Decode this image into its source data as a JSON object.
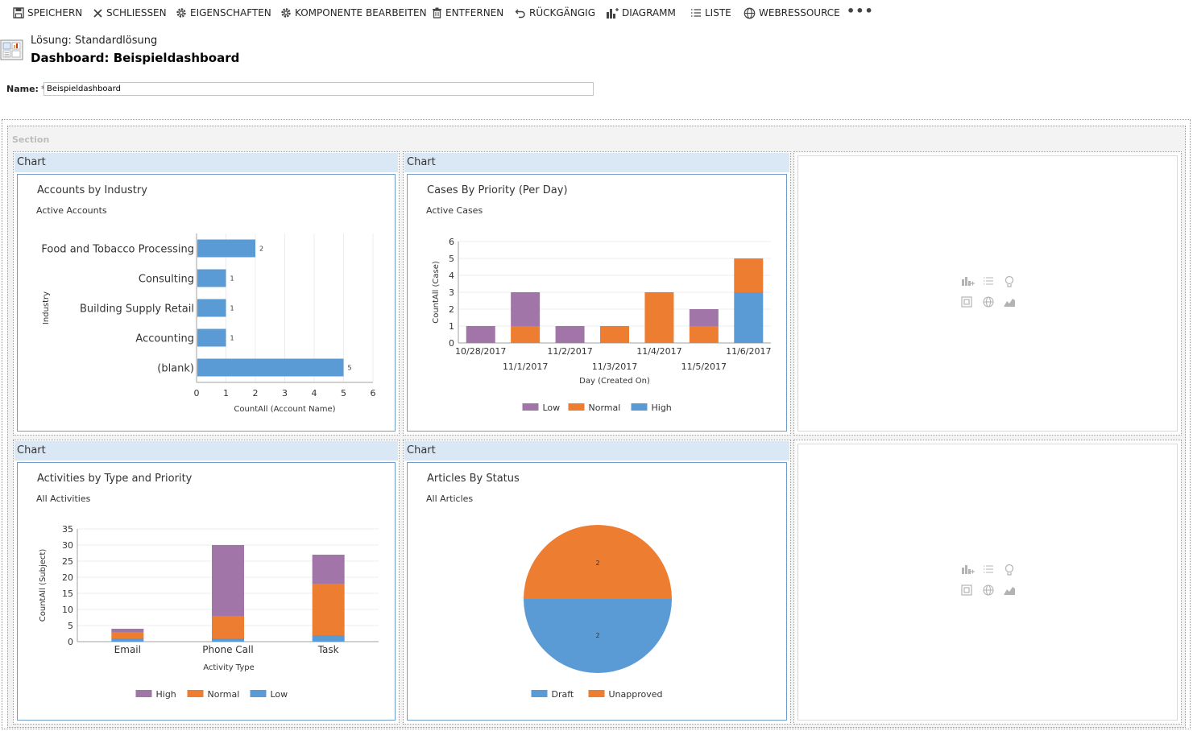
{
  "toolbar": {
    "save": "SPEICHERN",
    "close": "SCHLIESSEN",
    "properties": "EIGENSCHAFTEN",
    "edit_component": "KOMPONENTE BEARBEITEN",
    "remove": "ENTFERNEN",
    "undo": "RÜCKGÄNGIG",
    "chart": "DIAGRAMM",
    "list": "LISTE",
    "web_resource": "WEBRESSOURCE",
    "more": "•••"
  },
  "header": {
    "solution": "Lösung: Standardlösung",
    "title": "Dashboard: Beispieldashboard"
  },
  "form": {
    "name_label": "Name:",
    "required_mark": "*",
    "name_value": "Beispieldashboard"
  },
  "section": {
    "label": "Section"
  },
  "cells": {
    "chart1_header": "Chart",
    "chart2_header": "Chart",
    "chart3_header": "Chart",
    "chart4_header": "Chart"
  },
  "charts": {
    "accounts": {
      "title": "Accounts by Industry",
      "subtitle": "Active Accounts"
    },
    "cases": {
      "title": "Cases By Priority (Per Day)",
      "subtitle": "Active Cases"
    },
    "activities": {
      "title": "Activities by Type and Priority",
      "subtitle": "All Activities"
    },
    "articles": {
      "title": "Articles By Status",
      "subtitle": "All Articles"
    }
  },
  "colors": {
    "high_purple": "#a275a8",
    "normal_orange": "#ed7d31",
    "low_blue": "#5b9bd5"
  },
  "chart_data": [
    {
      "type": "bar",
      "orientation": "horizontal",
      "categories": [
        "Food and Tobacco Processing",
        "Consulting",
        "Building Supply Retail",
        "Accounting",
        "(blank)"
      ],
      "values": [
        2,
        1,
        1,
        1,
        5
      ],
      "xlabel": "CountAll (Account Name)",
      "ylabel": "Industry",
      "xlim": [
        0,
        6
      ],
      "xticks": [
        0,
        1,
        2,
        3,
        4,
        5,
        6
      ],
      "grid": true
    },
    {
      "type": "bar",
      "stacked": true,
      "categories": [
        "10/28/2017",
        "11/1/2017",
        "11/2/2017",
        "11/3/2017",
        "11/4/2017",
        "11/5/2017",
        "11/6/2017"
      ],
      "series": [
        {
          "name": "Low",
          "color": "#a275a8",
          "values": [
            1,
            2,
            1,
            0,
            0,
            1,
            0
          ]
        },
        {
          "name": "Normal",
          "color": "#ed7d31",
          "values": [
            0,
            1,
            0,
            1,
            3,
            1,
            2
          ]
        },
        {
          "name": "High",
          "color": "#5b9bd5",
          "values": [
            0,
            0,
            0,
            0,
            0,
            0,
            3
          ]
        }
      ],
      "xlabel": "Day (Created On)",
      "ylabel": "CountAll (Case)",
      "ylim": [
        0,
        6
      ],
      "yticks": [
        0,
        1,
        2,
        3,
        4,
        5,
        6
      ],
      "legend": "bottom"
    },
    {
      "type": "bar",
      "stacked": true,
      "categories": [
        "Email",
        "Phone Call",
        "Task"
      ],
      "series": [
        {
          "name": "High",
          "color": "#a275a8",
          "values": [
            1,
            22,
            9
          ]
        },
        {
          "name": "Normal",
          "color": "#ed7d31",
          "values": [
            2,
            7,
            16
          ]
        },
        {
          "name": "Low",
          "color": "#5b9bd5",
          "values": [
            1,
            1,
            2
          ]
        }
      ],
      "xlabel": "Activity Type",
      "ylabel": "CountAll (Subject)",
      "ylim": [
        0,
        35
      ],
      "yticks": [
        0,
        5,
        10,
        15,
        20,
        25,
        30,
        35
      ],
      "legend": "bottom"
    },
    {
      "type": "pie",
      "categories": [
        "Draft",
        "Unapproved"
      ],
      "values": [
        2,
        2
      ],
      "colors": [
        "#5b9bd5",
        "#ed7d31"
      ],
      "legend": "bottom"
    }
  ]
}
